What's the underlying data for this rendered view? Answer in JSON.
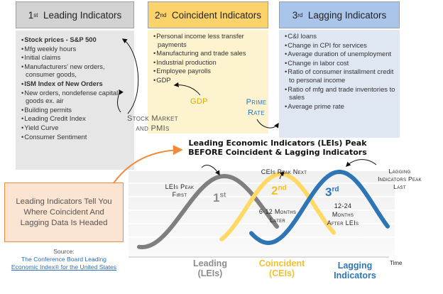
{
  "boxes": [
    {
      "id": "leading",
      "num": "1",
      "sup": "st",
      "title": "Leading Indicators",
      "header_color": "#d2d2d2",
      "body_color": "#e6e6e6",
      "items": [
        {
          "text": "Stock prices - S&P 500",
          "bold": true
        },
        {
          "text": "Mfg weekly hours",
          "bold": false
        },
        {
          "text": "Initial claims",
          "bold": false
        },
        {
          "text": "Manufacturers' new orders, consumer goods,",
          "bold": false
        },
        {
          "text": "ISM Index of New Orders",
          "bold": true
        },
        {
          "text": "New orders, nondefense capital goods ex. air",
          "bold": false
        },
        {
          "text": "Building permits",
          "bold": false
        },
        {
          "text": "Leading Credit Index",
          "bold": false
        },
        {
          "text": "Yield Curve",
          "bold": false
        },
        {
          "text": "Consumer Sentiment",
          "bold": false
        }
      ]
    },
    {
      "id": "coincident",
      "num": "2",
      "sup": "nd",
      "title": "Coincident Indicators",
      "header_color": "#fcd36a",
      "body_color": "#fef3cf",
      "items": [
        {
          "text": "Personal income less transfer payments",
          "bold": false
        },
        {
          "text": "Manufacturing and trade sales",
          "bold": false
        },
        {
          "text": "Industrial production",
          "bold": false
        },
        {
          "text": "Employee payrolls",
          "bold": false
        },
        {
          "text": "GDP",
          "bold": false
        }
      ]
    },
    {
      "id": "lagging",
      "num": "3",
      "sup": "rd",
      "title": "Lagging Indicators",
      "header_color": "#a9c6ea",
      "body_color": "#dfe7f2",
      "items": [
        {
          "text": "C&I loans",
          "bold": false
        },
        {
          "text": "Change in CPI for services",
          "bold": false
        },
        {
          "text": "Average duration of unemployment",
          "bold": false
        },
        {
          "text": "Change in labor cost",
          "bold": false
        },
        {
          "text": "Ratio of consumer installment credit to personal income",
          "bold": false
        },
        {
          "text": "Ratio of mfg and trade inventories to sales",
          "bold": false
        },
        {
          "text": "Average prime rate",
          "bold": false
        }
      ]
    }
  ],
  "annotations": {
    "stock_market": "Stock Market",
    "and_pmis": "and PMIs",
    "gdp": "GDP",
    "prime": "Prime",
    "rate": "Rate"
  },
  "chart_title": {
    "line1": "Leading Economic Indicators (LEIs) Peak",
    "line2": "BEFORE Coincident & Lagging Indicators"
  },
  "callout": {
    "text": "Leading Indicators Tell You Where Coincident And Lagging Data Is Headed",
    "border_color": "#ef8a3c",
    "fill_color": "#fce4d2"
  },
  "source": {
    "label": "Source:",
    "line1": "The Conference Board Leading",
    "line2": "Economic Index® for the United States"
  },
  "chart_labels": {
    "leis_peak_first_1": "LEIs Peak",
    "leis_peak_first_2": "First",
    "ceis_peak_next": "CEIs Peak Next",
    "lagging_peak_1": "Lagging",
    "lagging_peak_2": "Indicators Peak",
    "lagging_peak_3": "Last",
    "first_num": "1",
    "first_sup": "st",
    "second_num": "2",
    "second_sup": "nd",
    "third_num": "3",
    "third_sup": "rd",
    "months_612_1": "6-12 Months",
    "months_612_2": "Later",
    "months_1224_1": "12-24",
    "months_1224_2": "Months",
    "months_1224_3": "After LEIs",
    "time": "Time"
  },
  "series_labels": {
    "leading_1": "Leading",
    "leading_2": "(LEIs)",
    "coincident_1": "Coincident",
    "coincident_2": "(CEIs)",
    "lagging_1": "Lagging",
    "lagging_2": "Indicators"
  },
  "colors": {
    "leading": "#7f7f7f",
    "coincident": "#ffd966",
    "coincident_text": "#f2c12e",
    "lagging": "#2e75b6",
    "gdp_label": "#e0a800",
    "prime_label": "#2e75b6",
    "source_link": "#2e6fb6"
  }
}
